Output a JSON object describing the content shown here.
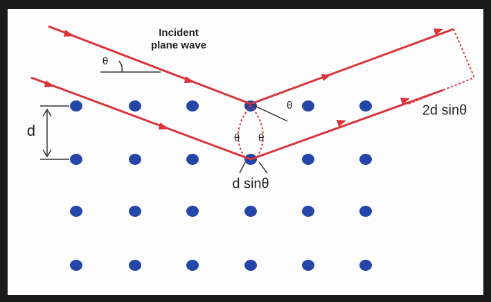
{
  "diagram": {
    "incident_label": [
      "Incident",
      "plane wave"
    ],
    "angle_labels": [
      "θ",
      "θ",
      "θ",
      "θ"
    ],
    "spacing_label": "d",
    "path_difference_label": "d sinθ",
    "total_difference_label": "2d sinθ"
  }
}
